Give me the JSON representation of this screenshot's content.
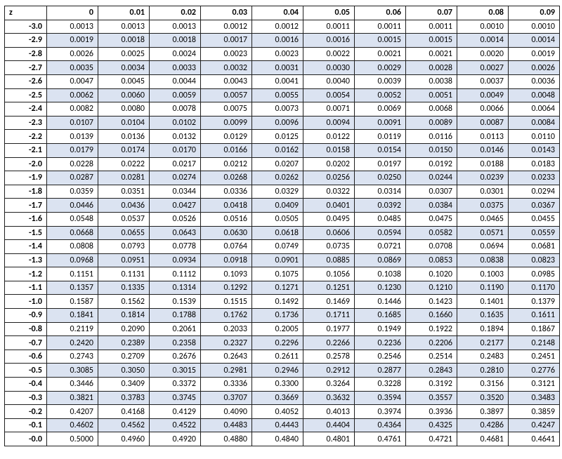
{
  "table": {
    "type": "table",
    "z_label": "z",
    "columns": [
      "0",
      "0.01",
      "0.02",
      "0.03",
      "0.04",
      "0.05",
      "0.06",
      "0.07",
      "0.08",
      "0.09"
    ],
    "row_labels": [
      "-3.0",
      "-2.9",
      "-2.8",
      "-2.7",
      "-2.6",
      "-2.5",
      "-2.4",
      "-2.3",
      "-2.2",
      "-2.1",
      "-2.0",
      "-1.9",
      "-1.8",
      "-1.7",
      "-1.6",
      "-1.5",
      "-1.4",
      "-1.3",
      "-1.2",
      "-1.1",
      "-1.0",
      "-0.9",
      "-0.8",
      "-0.7",
      "-0.6",
      "-0.5",
      "-0.4",
      "-0.3",
      "-0.2",
      "-0.1",
      "-0.0"
    ],
    "rows": [
      [
        "0.0013",
        "0.0013",
        "0.0013",
        "0.0012",
        "0.0012",
        "0.0011",
        "0.0011",
        "0.0011",
        "0.0010",
        "0.0010"
      ],
      [
        "0.0019",
        "0.0018",
        "0.0018",
        "0.0017",
        "0.0016",
        "0.0016",
        "0.0015",
        "0.0015",
        "0.0014",
        "0.0014"
      ],
      [
        "0.0026",
        "0.0025",
        "0.0024",
        "0.0023",
        "0.0023",
        "0.0022",
        "0.0021",
        "0.0021",
        "0.0020",
        "0.0019"
      ],
      [
        "0.0035",
        "0.0034",
        "0.0033",
        "0.0032",
        "0.0031",
        "0.0030",
        "0.0029",
        "0.0028",
        "0.0027",
        "0.0026"
      ],
      [
        "0.0047",
        "0.0045",
        "0.0044",
        "0.0043",
        "0.0041",
        "0.0040",
        "0.0039",
        "0.0038",
        "0.0037",
        "0.0036"
      ],
      [
        "0.0062",
        "0.0060",
        "0.0059",
        "0.0057",
        "0.0055",
        "0.0054",
        "0.0052",
        "0.0051",
        "0.0049",
        "0.0048"
      ],
      [
        "0.0082",
        "0.0080",
        "0.0078",
        "0.0075",
        "0.0073",
        "0.0071",
        "0.0069",
        "0.0068",
        "0.0066",
        "0.0064"
      ],
      [
        "0.0107",
        "0.0104",
        "0.0102",
        "0.0099",
        "0.0096",
        "0.0094",
        "0.0091",
        "0.0089",
        "0.0087",
        "0.0084"
      ],
      [
        "0.0139",
        "0.0136",
        "0.0132",
        "0.0129",
        "0.0125",
        "0.0122",
        "0.0119",
        "0.0116",
        "0.0113",
        "0.0110"
      ],
      [
        "0.0179",
        "0.0174",
        "0.0170",
        "0.0166",
        "0.0162",
        "0.0158",
        "0.0154",
        "0.0150",
        "0.0146",
        "0.0143"
      ],
      [
        "0.0228",
        "0.0222",
        "0.0217",
        "0.0212",
        "0.0207",
        "0.0202",
        "0.0197",
        "0.0192",
        "0.0188",
        "0.0183"
      ],
      [
        "0.0287",
        "0.0281",
        "0.0274",
        "0.0268",
        "0.0262",
        "0.0256",
        "0.0250",
        "0.0244",
        "0.0239",
        "0.0233"
      ],
      [
        "0.0359",
        "0.0351",
        "0.0344",
        "0.0336",
        "0.0329",
        "0.0322",
        "0.0314",
        "0.0307",
        "0.0301",
        "0.0294"
      ],
      [
        "0.0446",
        "0.0436",
        "0.0427",
        "0.0418",
        "0.0409",
        "0.0401",
        "0.0392",
        "0.0384",
        "0.0375",
        "0.0367"
      ],
      [
        "0.0548",
        "0.0537",
        "0.0526",
        "0.0516",
        "0.0505",
        "0.0495",
        "0.0485",
        "0.0475",
        "0.0465",
        "0.0455"
      ],
      [
        "0.0668",
        "0.0655",
        "0.0643",
        "0.0630",
        "0.0618",
        "0.0606",
        "0.0594",
        "0.0582",
        "0.0571",
        "0.0559"
      ],
      [
        "0.0808",
        "0.0793",
        "0.0778",
        "0.0764",
        "0.0749",
        "0.0735",
        "0.0721",
        "0.0708",
        "0.0694",
        "0.0681"
      ],
      [
        "0.0968",
        "0.0951",
        "0.0934",
        "0.0918",
        "0.0901",
        "0.0885",
        "0.0869",
        "0.0853",
        "0.0838",
        "0.0823"
      ],
      [
        "0.1151",
        "0.1131",
        "0.1112",
        "0.1093",
        "0.1075",
        "0.1056",
        "0.1038",
        "0.1020",
        "0.1003",
        "0.0985"
      ],
      [
        "0.1357",
        "0.1335",
        "0.1314",
        "0.1292",
        "0.1271",
        "0.1251",
        "0.1230",
        "0.1210",
        "0.1190",
        "0.1170"
      ],
      [
        "0.1587",
        "0.1562",
        "0.1539",
        "0.1515",
        "0.1492",
        "0.1469",
        "0.1446",
        "0.1423",
        "0.1401",
        "0.1379"
      ],
      [
        "0.1841",
        "0.1814",
        "0.1788",
        "0.1762",
        "0.1736",
        "0.1711",
        "0.1685",
        "0.1660",
        "0.1635",
        "0.1611"
      ],
      [
        "0.2119",
        "0.2090",
        "0.2061",
        "0.2033",
        "0.2005",
        "0.1977",
        "0.1949",
        "0.1922",
        "0.1894",
        "0.1867"
      ],
      [
        "0.2420",
        "0.2389",
        "0.2358",
        "0.2327",
        "0.2296",
        "0.2266",
        "0.2236",
        "0.2206",
        "0.2177",
        "0.2148"
      ],
      [
        "0.2743",
        "0.2709",
        "0.2676",
        "0.2643",
        "0.2611",
        "0.2578",
        "0.2546",
        "0.2514",
        "0.2483",
        "0.2451"
      ],
      [
        "0.3085",
        "0.3050",
        "0.3015",
        "0.2981",
        "0.2946",
        "0.2912",
        "0.2877",
        "0.2843",
        "0.2810",
        "0.2776"
      ],
      [
        "0.3446",
        "0.3409",
        "0.3372",
        "0.3336",
        "0.3300",
        "0.3264",
        "0.3228",
        "0.3192",
        "0.3156",
        "0.3121"
      ],
      [
        "0.3821",
        "0.3783",
        "0.3745",
        "0.3707",
        "0.3669",
        "0.3632",
        "0.3594",
        "0.3557",
        "0.3520",
        "0.3483"
      ],
      [
        "0.4207",
        "0.4168",
        "0.4129",
        "0.4090",
        "0.4052",
        "0.4013",
        "0.3974",
        "0.3936",
        "0.3897",
        "0.3859"
      ],
      [
        "0.4602",
        "0.4562",
        "0.4522",
        "0.4483",
        "0.4443",
        "0.4404",
        "0.4364",
        "0.4325",
        "0.4286",
        "0.4247"
      ],
      [
        "0.5000",
        "0.4960",
        "0.4920",
        "0.4880",
        "0.4840",
        "0.4801",
        "0.4761",
        "0.4721",
        "0.4681",
        "0.4641"
      ]
    ],
    "colors": {
      "border": "#1f1f1f",
      "header_bg": "#ffffff",
      "rowhead_bg": "#ffffff",
      "shade_bg": "#dbe3f1",
      "plain_bg": "#ffffff",
      "text": "#000000"
    },
    "fonts": {
      "family": "Calibri, Arial, sans-serif",
      "size_pt": 9,
      "header_weight": 700,
      "cell_weight": 400
    },
    "shaded_rows": [
      1,
      3,
      5,
      7,
      9,
      11,
      13,
      15,
      17,
      19,
      21,
      23,
      25,
      27,
      29
    ]
  }
}
